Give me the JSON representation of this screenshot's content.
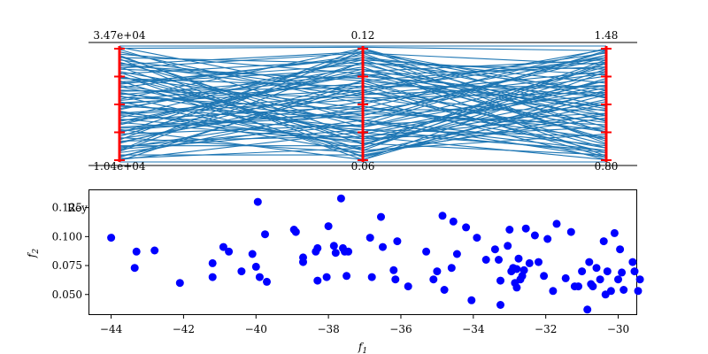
{
  "chart_data": [
    {
      "type": "parallel_coordinates",
      "axes": [
        {
          "top_label": "3.47e+04",
          "bottom_label": "1.04e+04",
          "max": 34700,
          "min": 10400
        },
        {
          "top_label": "0.12",
          "bottom_label": "0.06",
          "max": 0.12,
          "min": 0.06
        },
        {
          "top_label": "1.48",
          "bottom_label": "0.80",
          "max": 1.48,
          "min": 0.8
        }
      ],
      "overlay_text": "Rey",
      "line_color": "#1f77b4",
      "axis_color": "#ff0000",
      "lines": [
        [
          0.98,
          0.99,
          0.96
        ],
        [
          0.95,
          0.5,
          0.92
        ],
        [
          0.92,
          0.15,
          0.88
        ],
        [
          0.9,
          0.85,
          0.8
        ],
        [
          0.88,
          0.6,
          0.97
        ],
        [
          0.86,
          0.3,
          0.7
        ],
        [
          0.84,
          0.95,
          0.55
        ],
        [
          0.82,
          0.1,
          0.85
        ],
        [
          0.8,
          0.72,
          0.4
        ],
        [
          0.78,
          0.4,
          0.9
        ],
        [
          0.76,
          0.88,
          0.75
        ],
        [
          0.74,
          0.2,
          0.3
        ],
        [
          0.72,
          0.65,
          0.65
        ],
        [
          0.7,
          0.05,
          0.5
        ],
        [
          0.68,
          0.8,
          0.2
        ],
        [
          0.66,
          0.35,
          0.95
        ],
        [
          0.64,
          0.92,
          0.35
        ],
        [
          0.62,
          0.55,
          0.6
        ],
        [
          0.6,
          0.25,
          0.1
        ],
        [
          0.58,
          0.75,
          0.82
        ],
        [
          0.56,
          0.45,
          0.45
        ],
        [
          0.54,
          0.98,
          0.25
        ],
        [
          0.52,
          0.12,
          0.72
        ],
        [
          0.5,
          0.68,
          0.15
        ],
        [
          0.48,
          0.38,
          0.58
        ],
        [
          0.46,
          0.82,
          0.05
        ],
        [
          0.44,
          0.08,
          0.38
        ],
        [
          0.42,
          0.58,
          0.78
        ],
        [
          0.4,
          0.28,
          0.22
        ],
        [
          0.38,
          0.9,
          0.68
        ],
        [
          0.36,
          0.48,
          0.12
        ],
        [
          0.34,
          0.18,
          0.52
        ],
        [
          0.32,
          0.78,
          0.88
        ],
        [
          0.3,
          0.42,
          0.32
        ],
        [
          0.28,
          0.02,
          0.62
        ],
        [
          0.26,
          0.62,
          0.08
        ],
        [
          0.24,
          0.32,
          0.42
        ],
        [
          0.22,
          0.86,
          0.18
        ],
        [
          0.2,
          0.52,
          0.76
        ],
        [
          0.18,
          0.22,
          0.02
        ],
        [
          0.16,
          0.7,
          0.48
        ],
        [
          0.14,
          0.14,
          0.86
        ],
        [
          0.12,
          0.44,
          0.28
        ],
        [
          0.1,
          0.96,
          0.58
        ],
        [
          0.08,
          0.36,
          0.14
        ],
        [
          0.06,
          0.06,
          0.42
        ],
        [
          0.04,
          0.66,
          0.04
        ],
        [
          0.02,
          0.26,
          0.66
        ],
        [
          0.97,
          0.34,
          0.1
        ],
        [
          0.93,
          0.76,
          0.44
        ],
        [
          0.89,
          0.04,
          0.58
        ],
        [
          0.85,
          0.56,
          0.26
        ],
        [
          0.81,
          0.94,
          0.84
        ],
        [
          0.77,
          0.16,
          0.06
        ],
        [
          0.73,
          0.46,
          0.98
        ],
        [
          0.69,
          0.84,
          0.36
        ],
        [
          0.65,
          0.24,
          0.64
        ],
        [
          0.61,
          0.64,
          0.94
        ],
        [
          0.57,
          0.1,
          0.24
        ],
        [
          0.53,
          0.74,
          0.56
        ],
        [
          0.49,
          0.3,
          0.82
        ],
        [
          0.45,
          0.88,
          0.3
        ],
        [
          0.41,
          0.54,
          0.02
        ],
        [
          0.37,
          0.2,
          0.7
        ],
        [
          0.33,
          0.8,
          0.46
        ],
        [
          0.29,
          0.4,
          0.92
        ],
        [
          0.25,
          0.94,
          0.16
        ],
        [
          0.21,
          0.08,
          0.54
        ],
        [
          0.17,
          0.6,
          0.34
        ],
        [
          0.13,
          0.32,
          0.96
        ],
        [
          0.09,
          0.86,
          0.62
        ],
        [
          0.05,
          0.48,
          0.2
        ],
        [
          0.03,
          0.12,
          0.8
        ],
        [
          0.99,
          0.58,
          0.66
        ],
        [
          0.91,
          0.22,
          0.4
        ],
        [
          0.83,
          0.7,
          0.12
        ],
        [
          0.75,
          0.02,
          0.78
        ],
        [
          0.67,
          0.9,
          0.48
        ],
        [
          0.59,
          0.36,
          0.04
        ],
        [
          0.51,
          0.62,
          0.9
        ],
        [
          0.43,
          0.16,
          0.6
        ],
        [
          0.35,
          0.76,
          0.26
        ],
        [
          0.27,
          0.44,
          0.74
        ],
        [
          0.19,
          0.98,
          0.4
        ],
        [
          0.11,
          0.28,
          0.08
        ],
        [
          0.01,
          0.7,
          0.86
        ],
        [
          0.0,
          0.0,
          0.0
        ],
        [
          1.0,
          1.0,
          1.0
        ]
      ]
    },
    {
      "type": "scatter",
      "xlabel": "f1",
      "ylabel": "f2",
      "xlim": [
        -44.6,
        -29.5
      ],
      "ylim": [
        0.033,
        0.14
      ],
      "xticks": [
        -44,
        -42,
        -40,
        -38,
        -36,
        -34,
        -32,
        -30
      ],
      "xtick_labels": [
        "−44",
        "−42",
        "−40",
        "−38",
        "−36",
        "−34",
        "−32",
        "−30"
      ],
      "yticks": [
        0.05,
        0.075,
        0.1,
        0.125
      ],
      "ytick_labels": [
        "0.050",
        "0.075",
        "0.100",
        "0.125"
      ],
      "color": "#0000ff",
      "points": [
        [
          -44.0,
          0.099
        ],
        [
          -43.3,
          0.087
        ],
        [
          -43.35,
          0.073
        ],
        [
          -42.8,
          0.088
        ],
        [
          -42.1,
          0.06
        ],
        [
          -41.2,
          0.077
        ],
        [
          -41.2,
          0.065
        ],
        [
          -40.9,
          0.091
        ],
        [
          -40.75,
          0.087
        ],
        [
          -40.4,
          0.07
        ],
        [
          -40.1,
          0.085
        ],
        [
          -40.0,
          0.074
        ],
        [
          -39.9,
          0.065
        ],
        [
          -39.95,
          0.13
        ],
        [
          -39.75,
          0.102
        ],
        [
          -39.7,
          0.061
        ],
        [
          -38.95,
          0.106
        ],
        [
          -38.9,
          0.104
        ],
        [
          -38.7,
          0.082
        ],
        [
          -38.7,
          0.078
        ],
        [
          -38.35,
          0.087
        ],
        [
          -38.3,
          0.09
        ],
        [
          -38.3,
          0.062
        ],
        [
          -38.05,
          0.065
        ],
        [
          -38.0,
          0.109
        ],
        [
          -37.85,
          0.092
        ],
        [
          -37.8,
          0.086
        ],
        [
          -37.65,
          0.133
        ],
        [
          -37.6,
          0.09
        ],
        [
          -37.55,
          0.087
        ],
        [
          -37.5,
          0.066
        ],
        [
          -37.45,
          0.087
        ],
        [
          -36.85,
          0.099
        ],
        [
          -36.8,
          0.065
        ],
        [
          -36.55,
          0.117
        ],
        [
          -36.5,
          0.091
        ],
        [
          -36.2,
          0.071
        ],
        [
          -36.15,
          0.063
        ],
        [
          -36.1,
          0.096
        ],
        [
          -35.8,
          0.057
        ],
        [
          -35.3,
          0.087
        ],
        [
          -35.1,
          0.063
        ],
        [
          -35.0,
          0.07
        ],
        [
          -34.85,
          0.118
        ],
        [
          -34.8,
          0.054
        ],
        [
          -34.6,
          0.073
        ],
        [
          -34.55,
          0.113
        ],
        [
          -34.45,
          0.085
        ],
        [
          -34.2,
          0.108
        ],
        [
          -34.05,
          0.045
        ],
        [
          -33.9,
          0.099
        ],
        [
          -33.65,
          0.08
        ],
        [
          -33.4,
          0.089
        ],
        [
          -33.3,
          0.08
        ],
        [
          -33.25,
          0.062
        ],
        [
          -33.25,
          0.041
        ],
        [
          -33.05,
          0.092
        ],
        [
          -33.0,
          0.106
        ],
        [
          -32.95,
          0.07
        ],
        [
          -32.9,
          0.073
        ],
        [
          -32.85,
          0.06
        ],
        [
          -32.8,
          0.072
        ],
        [
          -32.8,
          0.056
        ],
        [
          -32.75,
          0.081
        ],
        [
          -32.7,
          0.063
        ],
        [
          -32.65,
          0.066
        ],
        [
          -32.6,
          0.071
        ],
        [
          -32.55,
          0.107
        ],
        [
          -32.45,
          0.077
        ],
        [
          -32.3,
          0.101
        ],
        [
          -32.2,
          0.078
        ],
        [
          -32.05,
          0.066
        ],
        [
          -31.95,
          0.098
        ],
        [
          -31.8,
          0.053
        ],
        [
          -31.7,
          0.111
        ],
        [
          -31.45,
          0.064
        ],
        [
          -31.3,
          0.104
        ],
        [
          -31.2,
          0.057
        ],
        [
          -31.1,
          0.057
        ],
        [
          -31.0,
          0.07
        ],
        [
          -30.85,
          0.037
        ],
        [
          -30.8,
          0.078
        ],
        [
          -30.75,
          0.059
        ],
        [
          -30.7,
          0.057
        ],
        [
          -30.6,
          0.073
        ],
        [
          -30.5,
          0.063
        ],
        [
          -30.4,
          0.096
        ],
        [
          -30.35,
          0.05
        ],
        [
          -30.3,
          0.07
        ],
        [
          -30.2,
          0.053
        ],
        [
          -30.1,
          0.103
        ],
        [
          -30.0,
          0.063
        ],
        [
          -29.95,
          0.089
        ],
        [
          -29.9,
          0.069
        ],
        [
          -29.85,
          0.054
        ],
        [
          -29.6,
          0.078
        ],
        [
          -29.55,
          0.07
        ],
        [
          -29.45,
          0.053
        ],
        [
          -29.4,
          0.063
        ]
      ]
    }
  ]
}
